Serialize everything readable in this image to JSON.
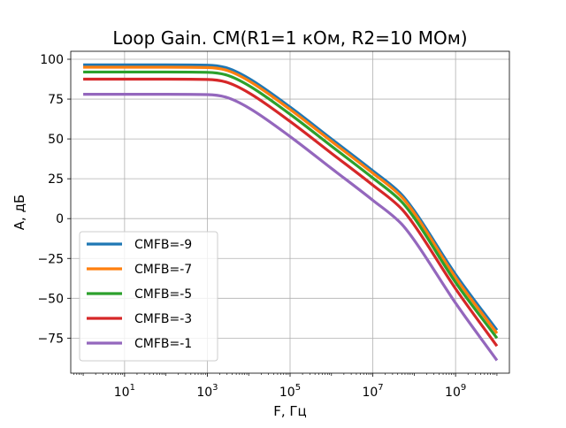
{
  "chart_data": {
    "type": "line",
    "title": "Loop Gain. CM(R1=1 кОм, R2=10 МОм)",
    "xlabel": "F, Гц",
    "ylabel": "A, дБ",
    "xscale": "log",
    "xlim": [
      0.5,
      20000000000
    ],
    "ylim": [
      -97,
      105
    ],
    "xticks": [
      {
        "value": 10,
        "base": "10",
        "exp": "1"
      },
      {
        "value": 1000,
        "base": "10",
        "exp": "3"
      },
      {
        "value": 100000,
        "base": "10",
        "exp": "5"
      },
      {
        "value": 10000000,
        "base": "10",
        "exp": "7"
      },
      {
        "value": 1000000000,
        "base": "10",
        "exp": "9"
      }
    ],
    "yticks": [
      100,
      75,
      50,
      25,
      0,
      -25,
      -50,
      -75
    ],
    "grid": true,
    "legend_position": "lower-left",
    "x": [
      1,
      10,
      100,
      1000,
      3000,
      10000,
      100000,
      1000000,
      10000000,
      50000000,
      100000000,
      1000000000,
      10000000000
    ],
    "series": [
      {
        "name": "CMFB=-9",
        "color": "#1f77b4",
        "values": [
          96.5,
          96.5,
          96.5,
          96.3,
          94.5,
          88,
          70,
          50,
          30,
          15,
          5,
          -35,
          -70
        ]
      },
      {
        "name": "CMFB=-7",
        "color": "#ff7f0e",
        "values": [
          95,
          95,
          95,
          94.8,
          93,
          86.5,
          68.5,
          48.5,
          28.5,
          13.5,
          3.5,
          -37,
          -72
        ]
      },
      {
        "name": "CMFB=-5",
        "color": "#2ca02c",
        "values": [
          92,
          92,
          92,
          91.8,
          90,
          83.5,
          65.5,
          45.5,
          25.5,
          10.5,
          0.5,
          -40,
          -75
        ]
      },
      {
        "name": "CMFB=-3",
        "color": "#d62728",
        "values": [
          87.5,
          87.5,
          87.5,
          87.3,
          85.5,
          79,
          61,
          41,
          21,
          6,
          -4,
          -44,
          -80
        ]
      },
      {
        "name": "CMFB=-1",
        "color": "#9467bd",
        "values": [
          78,
          78,
          78,
          77.8,
          76,
          69.5,
          51.5,
          31.5,
          11.5,
          -3.5,
          -13.5,
          -53,
          -89
        ]
      }
    ]
  }
}
